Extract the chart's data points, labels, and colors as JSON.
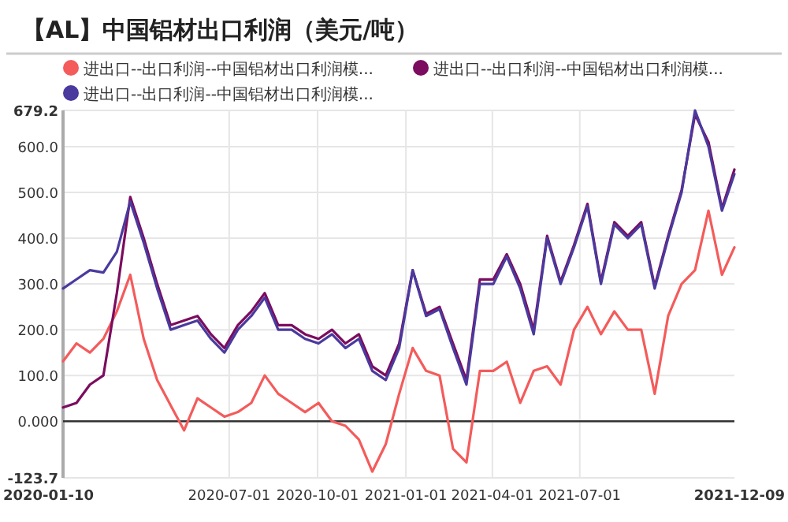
{
  "chart_data": {
    "type": "line",
    "title": "【AL】中国铝材出口利润（美元/吨）",
    "x": [
      "2020-01-10",
      "2020-01-24",
      "2020-02-07",
      "2020-02-21",
      "2020-03-06",
      "2020-03-20",
      "2020-04-03",
      "2020-04-17",
      "2020-05-01",
      "2020-05-15",
      "2020-05-29",
      "2020-06-12",
      "2020-06-26",
      "2020-07-10",
      "2020-07-24",
      "2020-08-07",
      "2020-08-21",
      "2020-09-04",
      "2020-09-18",
      "2020-10-02",
      "2020-10-16",
      "2020-10-30",
      "2020-11-13",
      "2020-11-27",
      "2020-12-11",
      "2020-12-25",
      "2021-01-08",
      "2021-01-22",
      "2021-02-05",
      "2021-02-19",
      "2021-03-05",
      "2021-03-19",
      "2021-04-02",
      "2021-04-16",
      "2021-04-30",
      "2021-05-14",
      "2021-05-28",
      "2021-06-11",
      "2021-06-25",
      "2021-07-09",
      "2021-07-23",
      "2021-08-06",
      "2021-08-20",
      "2021-09-03",
      "2021-09-17",
      "2021-10-01",
      "2021-10-15",
      "2021-10-29",
      "2021-11-12",
      "2021-11-26",
      "2021-12-09"
    ],
    "series": [
      {
        "name": "进出口--出口利润--中国铝材出口利润模...",
        "color": "#f45b5b",
        "values": [
          131,
          170,
          150,
          180,
          240,
          320,
          180,
          90,
          35,
          -20,
          50,
          30,
          10,
          20,
          40,
          100,
          60,
          40,
          20,
          40,
          0,
          -10,
          -40,
          -110,
          -50,
          60,
          160,
          110,
          100,
          -60,
          -90,
          110,
          110,
          130,
          40,
          110,
          120,
          80,
          200,
          250,
          190,
          240,
          200,
          200,
          60,
          230,
          300,
          330,
          460,
          320,
          380
        ]
      },
      {
        "name": "进出口--出口利润--中国铝材出口利润模...",
        "color": "#7b0c5f",
        "values": [
          30,
          40,
          80,
          100,
          280,
          490,
          400,
          300,
          210,
          220,
          230,
          190,
          160,
          210,
          240,
          280,
          210,
          210,
          190,
          180,
          200,
          170,
          190,
          120,
          100,
          170,
          330,
          235,
          250,
          170,
          90,
          310,
          310,
          365,
          300,
          200,
          405,
          305,
          385,
          475,
          305,
          435,
          405,
          435,
          295,
          405,
          505,
          670,
          610,
          465,
          550
        ]
      },
      {
        "name": "进出口--出口利润--中国铝材出口利润模...",
        "color": "#4a3a9e",
        "values": [
          290,
          310,
          330,
          325,
          370,
          480,
          390,
          290,
          200,
          210,
          220,
          180,
          150,
          200,
          230,
          270,
          200,
          200,
          180,
          170,
          190,
          160,
          180,
          110,
          90,
          160,
          330,
          230,
          245,
          160,
          80,
          300,
          300,
          360,
          290,
          190,
          400,
          300,
          380,
          470,
          300,
          430,
          400,
          430,
          290,
          400,
          500,
          679,
          600,
          460,
          540
        ]
      }
    ],
    "xlim": [
      "2020-01-10",
      "2021-12-09"
    ],
    "xticks": [
      "2020-01-10",
      "2020-07-01",
      "2020-10-01",
      "2021-01-01",
      "2021-04-01",
      "2021-07-01",
      "2021-12-09"
    ],
    "ylim": [
      -123.7,
      679.2
    ],
    "yticks": [
      -123.7,
      {
        "value": 0,
        "label": "0.000"
      },
      {
        "value": 100,
        "label": "100.0"
      },
      {
        "value": 200,
        "label": "200.0"
      },
      {
        "value": 300,
        "label": "300.0"
      },
      {
        "value": 400,
        "label": "400.0"
      },
      {
        "value": 500,
        "label": "500.0"
      },
      {
        "value": 600,
        "label": "600.0"
      },
      679.2
    ],
    "ref_lines": [
      {
        "axis": "y",
        "value": 0,
        "color": "#333333"
      }
    ],
    "grid": true,
    "legend": "top",
    "marker": "none",
    "line_style": "solid"
  }
}
